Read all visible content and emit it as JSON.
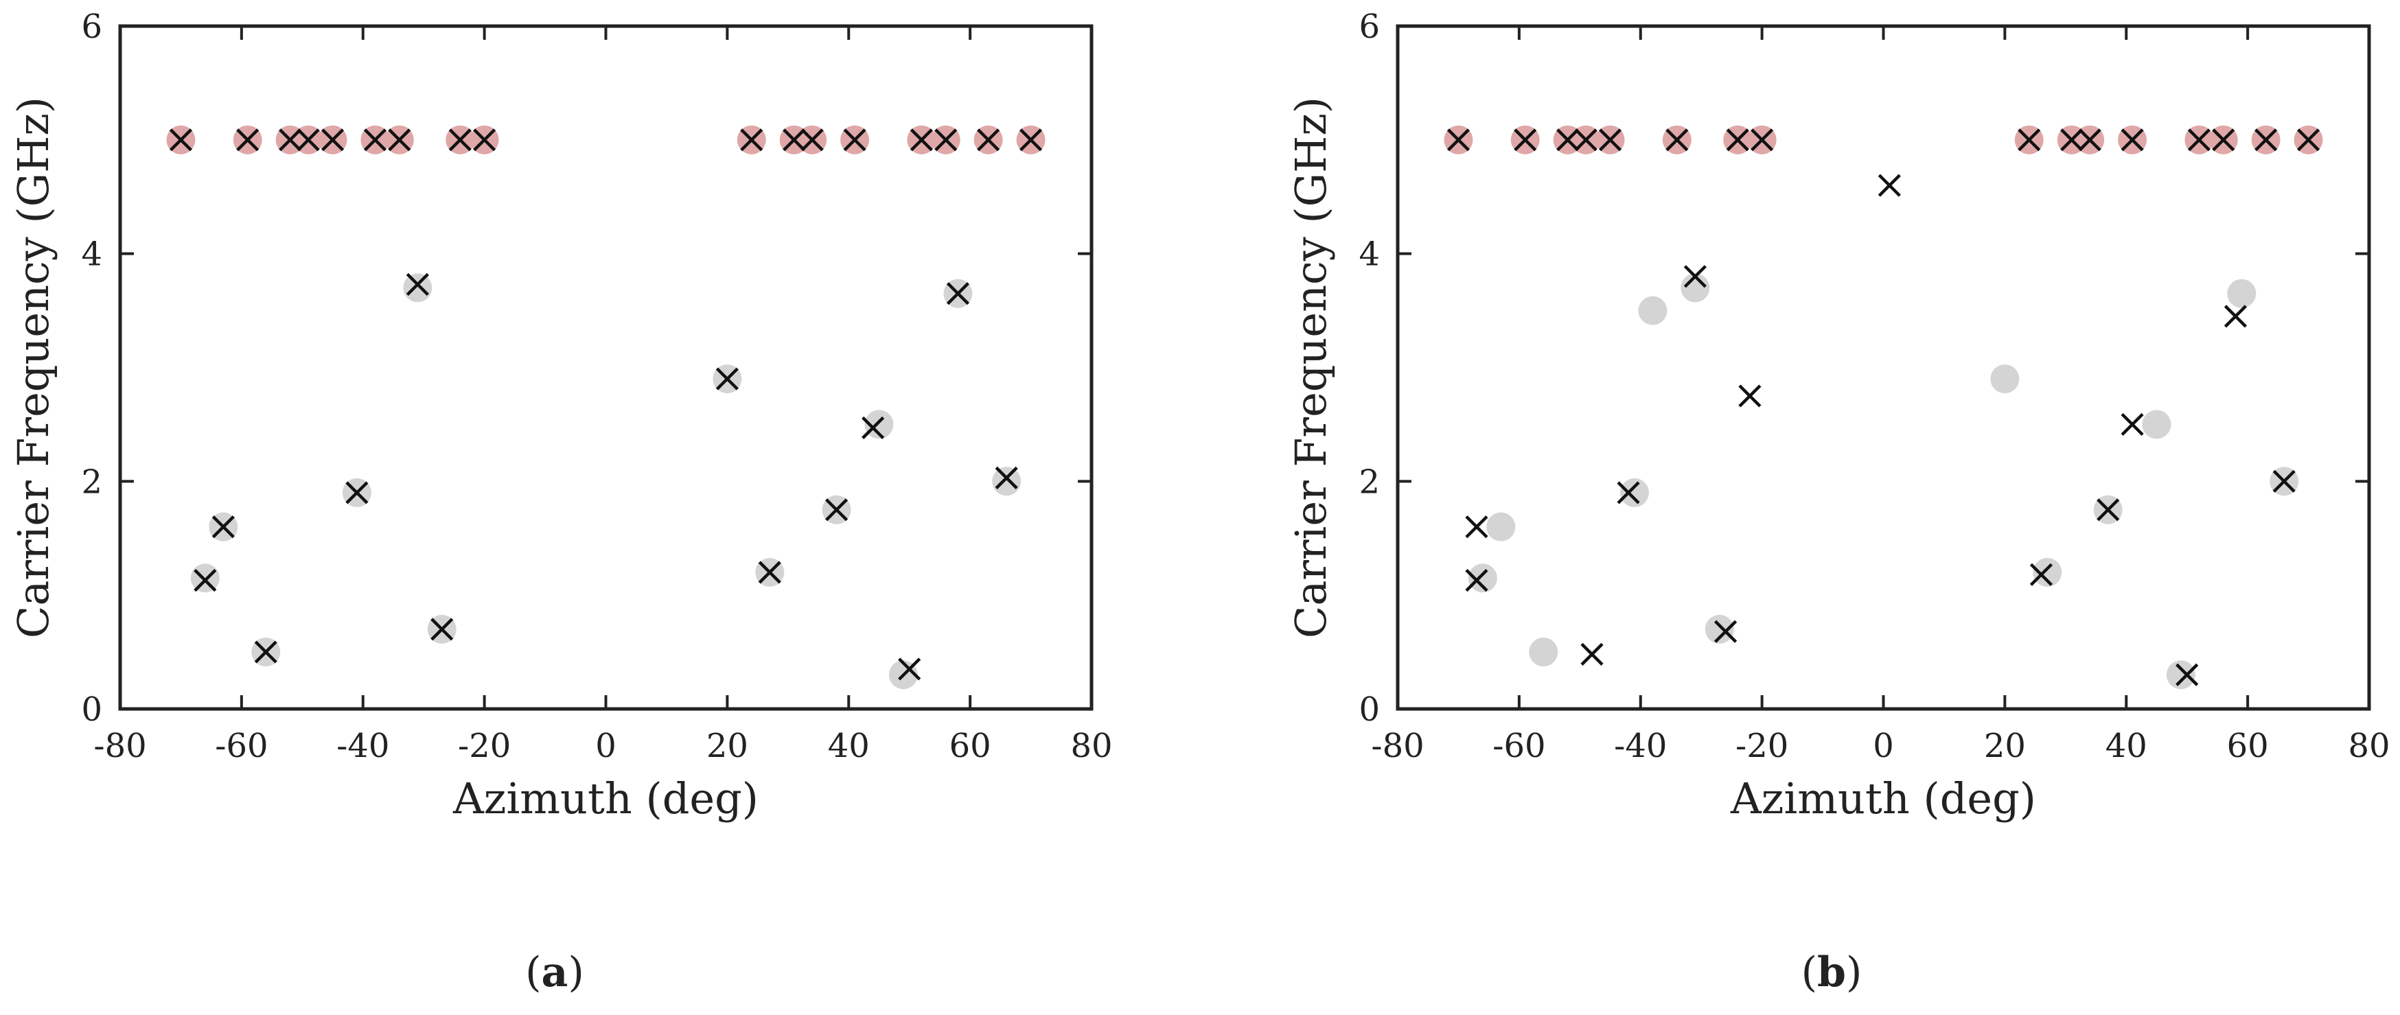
{
  "chart_data": [
    {
      "type": "scatter",
      "caption": "(a)",
      "caption_letter": "a",
      "xlabel": "Azimuth (deg)",
      "ylabel": "Carrier Frequency (GHz)",
      "xlim": [
        -80,
        80
      ],
      "ylim": [
        0,
        6
      ],
      "xticks": [
        -80,
        -60,
        -40,
        -20,
        0,
        20,
        40,
        60,
        80
      ],
      "yticks": [
        0,
        2,
        4,
        6
      ],
      "xtick_labels": [
        "-80",
        "-60",
        "-40",
        "-20",
        "0",
        "20",
        "40",
        "60",
        "80"
      ],
      "ytick_labels": [
        "0",
        "2",
        "4",
        "6"
      ],
      "grid": false,
      "colors": {
        "circle_red": "#dfa7a7",
        "circle_gray": "#d4d4d4",
        "cross": "#111111"
      },
      "series": [
        {
          "marker": "circle",
          "points": [
            {
              "x": -70,
              "y": 5,
              "color": "red"
            },
            {
              "x": -59,
              "y": 5,
              "color": "red"
            },
            {
              "x": -52,
              "y": 5,
              "color": "red"
            },
            {
              "x": -49,
              "y": 5,
              "color": "red"
            },
            {
              "x": -45,
              "y": 5,
              "color": "red"
            },
            {
              "x": -38,
              "y": 5,
              "color": "red"
            },
            {
              "x": -34,
              "y": 5,
              "color": "red"
            },
            {
              "x": -24,
              "y": 5,
              "color": "red"
            },
            {
              "x": -20,
              "y": 5,
              "color": "red"
            },
            {
              "x": 24,
              "y": 5,
              "color": "red"
            },
            {
              "x": 31,
              "y": 5,
              "color": "red"
            },
            {
              "x": 34,
              "y": 5,
              "color": "red"
            },
            {
              "x": 41,
              "y": 5,
              "color": "red"
            },
            {
              "x": 52,
              "y": 5,
              "color": "red"
            },
            {
              "x": 56,
              "y": 5,
              "color": "red"
            },
            {
              "x": 63,
              "y": 5,
              "color": "red"
            },
            {
              "x": 70,
              "y": 5,
              "color": "red"
            },
            {
              "x": -66,
              "y": 1.15,
              "color": "gray"
            },
            {
              "x": -63,
              "y": 1.6,
              "color": "gray"
            },
            {
              "x": -56,
              "y": 0.5,
              "color": "gray"
            },
            {
              "x": -41,
              "y": 1.9,
              "color": "gray"
            },
            {
              "x": -31,
              "y": 3.7,
              "color": "gray"
            },
            {
              "x": -27,
              "y": 0.7,
              "color": "gray"
            },
            {
              "x": 20,
              "y": 2.9,
              "color": "gray"
            },
            {
              "x": 27,
              "y": 1.2,
              "color": "gray"
            },
            {
              "x": 38,
              "y": 1.75,
              "color": "gray"
            },
            {
              "x": 45,
              "y": 2.5,
              "color": "gray"
            },
            {
              "x": 49,
              "y": 0.3,
              "color": "gray"
            },
            {
              "x": 58,
              "y": 3.65,
              "color": "gray"
            },
            {
              "x": 66,
              "y": 2.0,
              "color": "gray"
            }
          ]
        },
        {
          "marker": "cross",
          "points": [
            {
              "x": -70,
              "y": 5
            },
            {
              "x": -59,
              "y": 5
            },
            {
              "x": -52,
              "y": 5
            },
            {
              "x": -49,
              "y": 5
            },
            {
              "x": -45,
              "y": 5
            },
            {
              "x": -38,
              "y": 5
            },
            {
              "x": -34,
              "y": 5
            },
            {
              "x": -24,
              "y": 5
            },
            {
              "x": -20,
              "y": 5
            },
            {
              "x": 24,
              "y": 5
            },
            {
              "x": 31,
              "y": 5
            },
            {
              "x": 34,
              "y": 5
            },
            {
              "x": 41,
              "y": 5
            },
            {
              "x": 52,
              "y": 5
            },
            {
              "x": 56,
              "y": 5
            },
            {
              "x": 63,
              "y": 5
            },
            {
              "x": 70,
              "y": 5
            },
            {
              "x": -66,
              "y": 1.13
            },
            {
              "x": -63,
              "y": 1.6
            },
            {
              "x": -56,
              "y": 0.5
            },
            {
              "x": -41,
              "y": 1.9
            },
            {
              "x": -31,
              "y": 3.73
            },
            {
              "x": -27,
              "y": 0.7
            },
            {
              "x": 20,
              "y": 2.9
            },
            {
              "x": 27,
              "y": 1.2
            },
            {
              "x": 38,
              "y": 1.75
            },
            {
              "x": 44,
              "y": 2.47
            },
            {
              "x": 50,
              "y": 0.35
            },
            {
              "x": 58,
              "y": 3.65
            },
            {
              "x": 66,
              "y": 2.03
            }
          ]
        }
      ]
    },
    {
      "type": "scatter",
      "caption": "(b)",
      "caption_letter": "b",
      "xlabel": "Azimuth (deg)",
      "ylabel": "Carrier Frequency (GHz)",
      "xlim": [
        -80,
        80
      ],
      "ylim": [
        0,
        6
      ],
      "xticks": [
        -80,
        -60,
        -40,
        -20,
        0,
        20,
        40,
        60,
        80
      ],
      "yticks": [
        0,
        2,
        4,
        6
      ],
      "xtick_labels": [
        "-80",
        "-60",
        "-40",
        "-20",
        "0",
        "20",
        "40",
        "60",
        "80"
      ],
      "ytick_labels": [
        "0",
        "2",
        "4",
        "6"
      ],
      "grid": false,
      "colors": {
        "circle_red": "#dfa7a7",
        "circle_gray": "#d4d4d4",
        "cross": "#111111"
      },
      "series": [
        {
          "marker": "circle",
          "points": [
            {
              "x": -70,
              "y": 5,
              "color": "red"
            },
            {
              "x": -59,
              "y": 5,
              "color": "red"
            },
            {
              "x": -52,
              "y": 5,
              "color": "red"
            },
            {
              "x": -49,
              "y": 5,
              "color": "red"
            },
            {
              "x": -45,
              "y": 5,
              "color": "red"
            },
            {
              "x": -34,
              "y": 5,
              "color": "red"
            },
            {
              "x": -24,
              "y": 5,
              "color": "red"
            },
            {
              "x": -20,
              "y": 5,
              "color": "red"
            },
            {
              "x": 24,
              "y": 5,
              "color": "red"
            },
            {
              "x": 31,
              "y": 5,
              "color": "red"
            },
            {
              "x": 34,
              "y": 5,
              "color": "red"
            },
            {
              "x": 41,
              "y": 5,
              "color": "red"
            },
            {
              "x": 52,
              "y": 5,
              "color": "red"
            },
            {
              "x": 56,
              "y": 5,
              "color": "red"
            },
            {
              "x": 63,
              "y": 5,
              "color": "red"
            },
            {
              "x": 70,
              "y": 5,
              "color": "red"
            },
            {
              "x": -66,
              "y": 1.15,
              "color": "gray"
            },
            {
              "x": -63,
              "y": 1.6,
              "color": "gray"
            },
            {
              "x": -56,
              "y": 0.5,
              "color": "gray"
            },
            {
              "x": -41,
              "y": 1.9,
              "color": "gray"
            },
            {
              "x": -38,
              "y": 3.5,
              "color": "gray"
            },
            {
              "x": -31,
              "y": 3.7,
              "color": "gray"
            },
            {
              "x": -27,
              "y": 0.7,
              "color": "gray"
            },
            {
              "x": 20,
              "y": 2.9,
              "color": "gray"
            },
            {
              "x": 27,
              "y": 1.2,
              "color": "gray"
            },
            {
              "x": 37,
              "y": 1.75,
              "color": "gray"
            },
            {
              "x": 45,
              "y": 2.5,
              "color": "gray"
            },
            {
              "x": 49,
              "y": 0.3,
              "color": "gray"
            },
            {
              "x": 59,
              "y": 3.65,
              "color": "gray"
            },
            {
              "x": 66,
              "y": 2.0,
              "color": "gray"
            }
          ]
        },
        {
          "marker": "cross",
          "points": [
            {
              "x": -70,
              "y": 5
            },
            {
              "x": -59,
              "y": 5
            },
            {
              "x": -52,
              "y": 5
            },
            {
              "x": -49,
              "y": 5
            },
            {
              "x": -45,
              "y": 5
            },
            {
              "x": -34,
              "y": 5
            },
            {
              "x": -24,
              "y": 5
            },
            {
              "x": -20,
              "y": 5
            },
            {
              "x": 24,
              "y": 5
            },
            {
              "x": 31,
              "y": 5
            },
            {
              "x": 34,
              "y": 5
            },
            {
              "x": 41,
              "y": 5
            },
            {
              "x": 52,
              "y": 5
            },
            {
              "x": 56,
              "y": 5
            },
            {
              "x": 63,
              "y": 5
            },
            {
              "x": 70,
              "y": 5
            },
            {
              "x": 1,
              "y": 4.6
            },
            {
              "x": -67,
              "y": 1.6
            },
            {
              "x": -67,
              "y": 1.13
            },
            {
              "x": -48,
              "y": 0.48
            },
            {
              "x": -42,
              "y": 1.9
            },
            {
              "x": -31,
              "y": 3.8
            },
            {
              "x": -26,
              "y": 0.68
            },
            {
              "x": -22,
              "y": 2.75
            },
            {
              "x": 26,
              "y": 1.18
            },
            {
              "x": 37,
              "y": 1.75
            },
            {
              "x": 41,
              "y": 2.5
            },
            {
              "x": 50,
              "y": 0.3
            },
            {
              "x": 58,
              "y": 3.45
            },
            {
              "x": 66,
              "y": 2.0
            }
          ]
        }
      ]
    }
  ]
}
